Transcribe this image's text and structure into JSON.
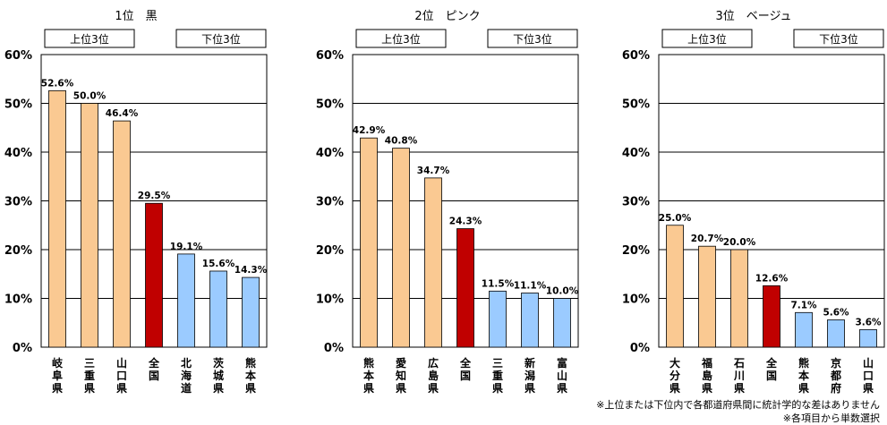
{
  "colors": {
    "top": "#FAC992",
    "national": "#C00000",
    "bottom": "#9BCBFF",
    "grid": "#000000"
  },
  "charts": [
    {
      "title": "1位　黒",
      "top_label": "上位3位",
      "bottom_label": "下位3位",
      "chart_data": {
        "type": "bar",
        "ylim": [
          0,
          60
        ],
        "yticks": [
          "0%",
          "10%",
          "20%",
          "30%",
          "40%",
          "50%",
          "60%"
        ],
        "categories": [
          "岐阜県",
          "三重県",
          "山口県",
          "全国",
          "北海道",
          "茨城県",
          "熊本県"
        ],
        "values": [
          52.6,
          50.0,
          46.4,
          29.5,
          19.1,
          15.6,
          14.3
        ],
        "value_labels": [
          "52.6%",
          "50.0%",
          "46.4%",
          "29.5%",
          "19.1%",
          "15.6%",
          "14.3%"
        ],
        "groups": [
          "top",
          "top",
          "top",
          "national",
          "bottom",
          "bottom",
          "bottom"
        ]
      }
    },
    {
      "title": "2位　ピンク",
      "top_label": "上位3位",
      "bottom_label": "下位3位",
      "chart_data": {
        "type": "bar",
        "ylim": [
          0,
          60
        ],
        "yticks": [
          "0%",
          "10%",
          "20%",
          "30%",
          "40%",
          "50%",
          "60%"
        ],
        "categories": [
          "熊本県",
          "愛知県",
          "広島県",
          "全国",
          "三重県",
          "新潟県",
          "富山県"
        ],
        "values": [
          42.9,
          40.8,
          34.7,
          24.3,
          11.5,
          11.1,
          10.0
        ],
        "value_labels": [
          "42.9%",
          "40.8%",
          "34.7%",
          "24.3%",
          "11.5%",
          "11.1%",
          "10.0%"
        ],
        "groups": [
          "top",
          "top",
          "top",
          "national",
          "bottom",
          "bottom",
          "bottom"
        ]
      }
    },
    {
      "title": "3位　ベージュ",
      "top_label": "上位3位",
      "bottom_label": "下位3位",
      "chart_data": {
        "type": "bar",
        "ylim": [
          0,
          60
        ],
        "yticks": [
          "0%",
          "10%",
          "20%",
          "30%",
          "40%",
          "50%",
          "60%"
        ],
        "categories": [
          "大分県",
          "福島県",
          "石川県",
          "全国",
          "熊本県",
          "京都府",
          "山口県"
        ],
        "values": [
          25.0,
          20.7,
          20.0,
          12.6,
          7.1,
          5.6,
          3.6
        ],
        "value_labels": [
          "25.0%",
          "20.7%",
          "20.0%",
          "12.6%",
          "7.1%",
          "5.6%",
          "3.6%"
        ],
        "groups": [
          "top",
          "top",
          "top",
          "national",
          "bottom",
          "bottom",
          "bottom"
        ]
      }
    }
  ],
  "notes": {
    "line1": "※上位または下位内で各都道府県間に統計学的な差はありません",
    "line2": "※各項目から単数選択"
  }
}
